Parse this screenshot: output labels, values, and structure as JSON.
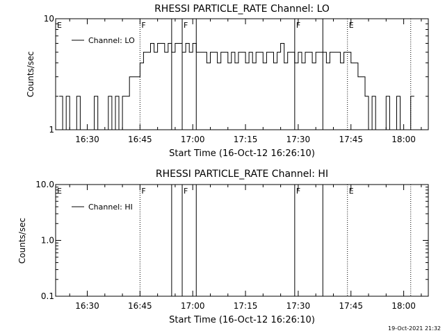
{
  "footer_timestamp": "19-Oct-2021 21:32",
  "chart_data": [
    {
      "type": "line",
      "title": "RHESSI PARTICLE_RATE Channel: LO",
      "xlabel": "Start Time (16-Oct-12 16:26:10)",
      "ylabel": "Counts/sec",
      "yscale": "log",
      "xlim": [
        "16:21",
        "18:07"
      ],
      "ylim": [
        1,
        10
      ],
      "x_ticks": [
        "16:30",
        "16:45",
        "17:00",
        "17:15",
        "17:30",
        "17:45",
        "18:00"
      ],
      "y_ticks": [
        "1",
        "10"
      ],
      "legend": {
        "label": "Channel: LO",
        "placement": "top-left"
      },
      "series": [
        {
          "name": "Channel: LO",
          "x": [
            "16:22",
            "16:23",
            "16:24",
            "16:25",
            "16:26",
            "16:27",
            "16:28",
            "16:29",
            "16:30",
            "16:31",
            "16:32",
            "16:33",
            "16:34",
            "16:35",
            "16:36",
            "16:37",
            "16:38",
            "16:39",
            "16:40",
            "16:41",
            "16:42",
            "16:43",
            "16:44",
            "16:45",
            "16:46",
            "16:47",
            "16:48",
            "16:49",
            "16:50",
            "16:51",
            "16:52",
            "16:53",
            "16:54",
            "16:55",
            "16:56",
            "16:57",
            "16:58",
            "16:59",
            "17:00",
            "17:01",
            "17:02",
            "17:03",
            "17:04",
            "17:05",
            "17:06",
            "17:07",
            "17:08",
            "17:09",
            "17:10",
            "17:11",
            "17:12",
            "17:13",
            "17:14",
            "17:15",
            "17:16",
            "17:17",
            "17:18",
            "17:19",
            "17:20",
            "17:21",
            "17:22",
            "17:23",
            "17:24",
            "17:25",
            "17:26",
            "17:27",
            "17:28",
            "17:29",
            "17:30",
            "17:31",
            "17:32",
            "17:33",
            "17:34",
            "17:35",
            "17:36",
            "17:37",
            "17:38",
            "17:39",
            "17:40",
            "17:41",
            "17:42",
            "17:43",
            "17:44",
            "17:45",
            "17:46",
            "17:47",
            "17:48",
            "17:49",
            "17:50",
            "17:51",
            "17:52",
            "17:53",
            "17:54",
            "17:55",
            "17:56",
            "17:57",
            "17:58",
            "17:59",
            "18:00",
            "18:01",
            "18:02"
          ],
          "values": [
            2,
            1,
            2,
            1,
            1,
            2,
            1,
            1,
            1,
            1,
            2,
            1,
            1,
            1,
            2,
            1,
            2,
            1,
            2,
            2,
            3,
            3,
            3,
            4,
            5,
            5,
            6,
            5,
            6,
            6,
            5,
            6,
            5,
            6,
            6,
            5,
            6,
            5,
            6,
            5,
            5,
            5,
            4,
            5,
            5,
            4,
            5,
            5,
            4,
            5,
            4,
            5,
            5,
            4,
            5,
            4,
            5,
            5,
            4,
            5,
            5,
            4,
            5,
            6,
            4,
            5,
            5,
            4,
            5,
            4,
            5,
            5,
            4,
            5,
            5,
            5,
            4,
            5,
            5,
            5,
            4,
            5,
            5,
            4,
            4,
            3,
            3,
            2,
            1,
            2,
            1,
            1,
            1,
            2,
            1,
            1,
            2,
            1,
            1,
            1,
            2
          ]
        }
      ],
      "annotations": [
        {
          "time": "16:45",
          "style": "dotted",
          "label": "F"
        },
        {
          "time": "16:54",
          "style": "solid",
          "label": ""
        },
        {
          "time": "16:57",
          "style": "solid",
          "label": "F"
        },
        {
          "time": "17:01",
          "style": "solid",
          "label": ""
        },
        {
          "time": "17:29",
          "style": "solid",
          "label": "F"
        },
        {
          "time": "17:37",
          "style": "solid",
          "label": ""
        },
        {
          "time": "17:44",
          "style": "dotted",
          "label": "E"
        },
        {
          "time": "18:02",
          "style": "dotted",
          "label": ""
        }
      ],
      "left_label": "E"
    },
    {
      "type": "line",
      "title": "RHESSI PARTICLE_RATE Channel: HI",
      "xlabel": "Start Time (16-Oct-12 16:26:10)",
      "ylabel": "Counts/sec",
      "yscale": "log",
      "xlim": [
        "16:21",
        "18:07"
      ],
      "ylim": [
        0.1,
        10
      ],
      "x_ticks": [
        "16:30",
        "16:45",
        "17:00",
        "17:15",
        "17:30",
        "17:45",
        "18:00"
      ],
      "y_ticks": [
        "0.1",
        "1.0",
        "10.0"
      ],
      "legend": {
        "label": "Channel: HI",
        "placement": "top-left"
      },
      "series": [
        {
          "name": "Channel: HI",
          "x": [],
          "values": []
        }
      ],
      "annotations": [
        {
          "time": "16:45",
          "style": "dotted",
          "label": "F"
        },
        {
          "time": "16:54",
          "style": "solid",
          "label": ""
        },
        {
          "time": "16:57",
          "style": "solid",
          "label": "F"
        },
        {
          "time": "17:01",
          "style": "solid",
          "label": ""
        },
        {
          "time": "17:29",
          "style": "solid",
          "label": "F"
        },
        {
          "time": "17:37",
          "style": "solid",
          "label": ""
        },
        {
          "time": "17:44",
          "style": "dotted",
          "label": "E"
        },
        {
          "time": "18:02",
          "style": "dotted",
          "label": ""
        }
      ],
      "left_label": "E"
    }
  ]
}
